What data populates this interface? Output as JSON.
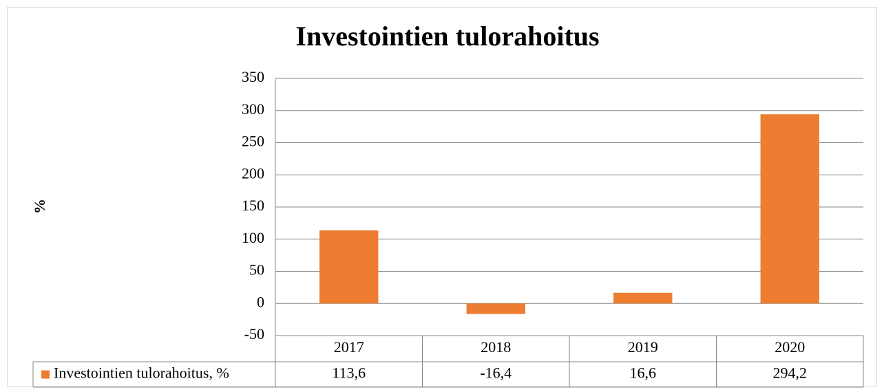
{
  "chart_data": {
    "type": "bar",
    "title": "Investointien tulorahoitus",
    "y_label": "%",
    "categories": [
      "2017",
      "2018",
      "2019",
      "2020"
    ],
    "series": [
      {
        "name": "Investointien tulorahoitus, %",
        "color": "#ed7d31",
        "values": [
          113.6,
          -16.4,
          16.6,
          294.2
        ],
        "value_labels": [
          "113,6",
          "-16,4",
          "16,6",
          "294,2"
        ]
      }
    ],
    "ylim": [
      -50,
      350
    ],
    "yticks": [
      -50,
      0,
      50,
      100,
      150,
      200,
      250,
      300,
      350
    ],
    "grid": true
  }
}
